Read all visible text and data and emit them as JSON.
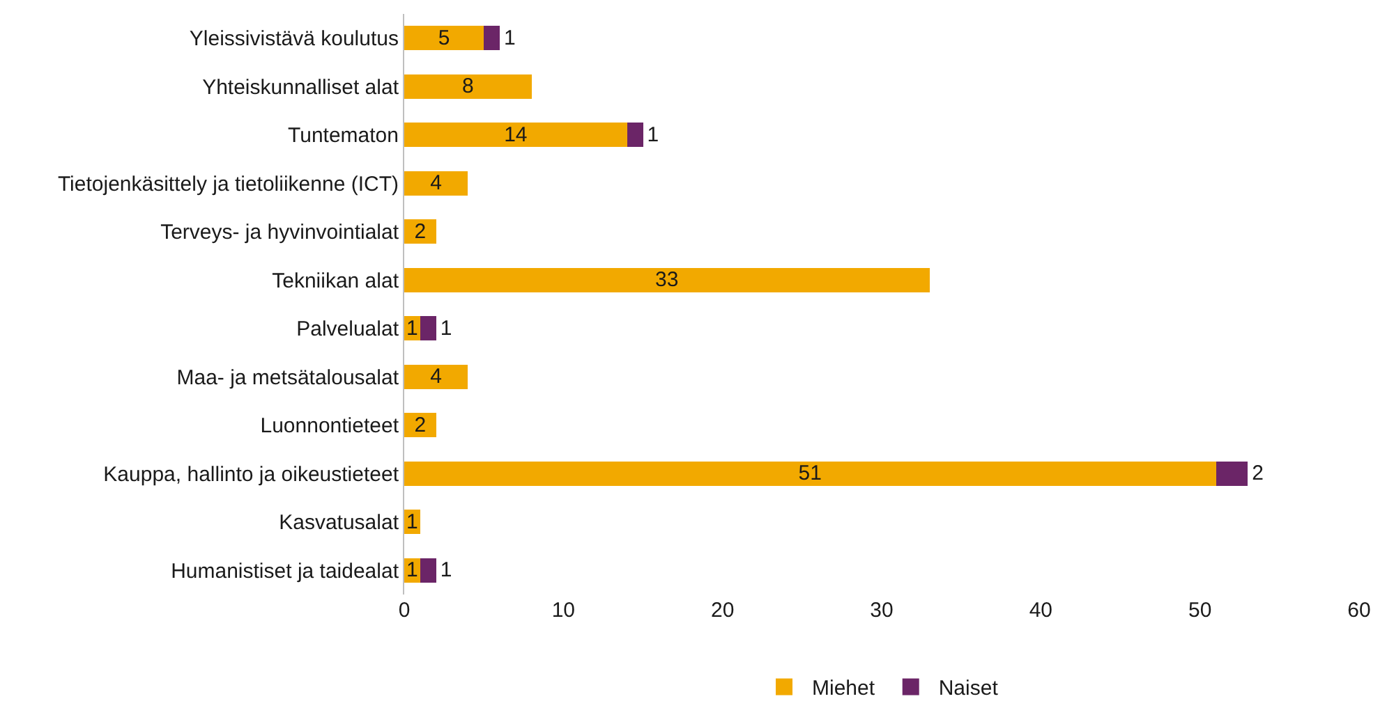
{
  "chart_data": {
    "type": "bar",
    "orientation": "horizontal",
    "stacked": true,
    "data_labels": true,
    "legend": "bottom",
    "grid": false,
    "categories": [
      "Yleissivistävä koulutus",
      "Yhteiskunnalliset alat",
      "Tuntematon",
      "Tietojenkäsittely ja tietoliikenne (ICT)",
      "Terveys- ja hyvinvointialat",
      "Tekniikan alat",
      "Palvelualat",
      "Maa- ja metsätalousalat",
      "Luonnontieteet",
      "Kauppa, hallinto ja oikeustieteet",
      "Kasvatusalat",
      "Humanistiset ja taidealat"
    ],
    "series": [
      {
        "name": "Miehet",
        "color": "#f2a900",
        "values": [
          5,
          8,
          14,
          4,
          2,
          33,
          1,
          4,
          2,
          51,
          1,
          1
        ]
      },
      {
        "name": "Naiset",
        "color": "#6b2567",
        "values": [
          1,
          null,
          1,
          null,
          null,
          null,
          1,
          null,
          null,
          2,
          null,
          1
        ]
      }
    ],
    "xlim": [
      0,
      60
    ],
    "xticks": [
      0,
      10,
      20,
      30,
      40,
      50,
      60
    ]
  }
}
